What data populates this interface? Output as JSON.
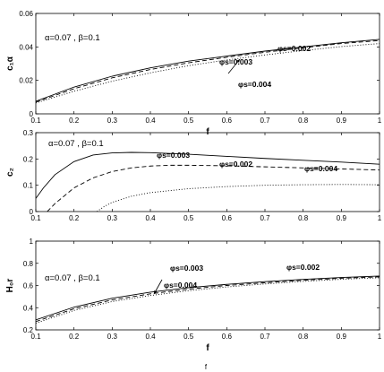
{
  "chart_data": [
    {
      "type": "line",
      "xlabel": "f",
      "ylabel": "c₁α",
      "xlim": [
        0.1,
        1
      ],
      "ylim": [
        0,
        0.06
      ],
      "xticks": [
        "0.1",
        "0.2",
        "0.3",
        "0.4",
        "0.5",
        "0.6",
        "0.7",
        "0.8",
        "0.9",
        "1"
      ],
      "yticks": [
        "0",
        "0.02",
        "0.04",
        "0.06"
      ],
      "params_label": "α=0.07 , β=0.1",
      "series_labels": [
        "φs=0.002",
        "φs=0.003",
        "φs=0.004"
      ],
      "series": [
        {
          "name": "φs=0.002",
          "style": "solid",
          "x": [
            0.1,
            0.2,
            0.3,
            0.4,
            0.5,
            0.6,
            0.7,
            0.8,
            0.9,
            1.0
          ],
          "values": [
            0.0075,
            0.016,
            0.0225,
            0.0275,
            0.0315,
            0.0345,
            0.0375,
            0.04,
            0.0425,
            0.0445
          ]
        },
        {
          "name": "φs=0.003",
          "style": "dashed",
          "x": [
            0.1,
            0.2,
            0.3,
            0.4,
            0.5,
            0.6,
            0.7,
            0.8,
            0.9,
            1.0
          ],
          "values": [
            0.007,
            0.015,
            0.0215,
            0.0265,
            0.0305,
            0.0338,
            0.0368,
            0.0395,
            0.042,
            0.0438
          ]
        },
        {
          "name": "φs=0.004",
          "style": "dotted",
          "x": [
            0.1,
            0.2,
            0.3,
            0.4,
            0.5,
            0.6,
            0.7,
            0.8,
            0.9,
            1.0
          ],
          "values": [
            0.0065,
            0.0135,
            0.0195,
            0.0245,
            0.0288,
            0.0322,
            0.0352,
            0.0378,
            0.0402,
            0.042
          ]
        }
      ]
    },
    {
      "type": "line",
      "xlabel": "",
      "ylabel": "c₂",
      "xlim": [
        0.1,
        1
      ],
      "ylim": [
        0,
        0.3
      ],
      "xticks": [
        "0.1",
        "0.2",
        "0.3",
        "0.4",
        "0.5",
        "0.6",
        "0.7",
        "0.8",
        "0.9",
        "1"
      ],
      "yticks": [
        "0",
        "0.1",
        "0.2",
        "0.3"
      ],
      "params_label": "α=0.07 , β=0.1",
      "series_labels": [
        "φs=0.002",
        "φs=0.003",
        "φs=0.004"
      ],
      "series": [
        {
          "name": "φs=0.002",
          "style": "solid",
          "x": [
            0.1,
            0.12,
            0.15,
            0.2,
            0.25,
            0.3,
            0.35,
            0.4,
            0.5,
            0.6,
            0.7,
            0.8,
            0.9,
            1.0
          ],
          "values": [
            0.05,
            0.09,
            0.14,
            0.19,
            0.215,
            0.223,
            0.225,
            0.224,
            0.218,
            0.21,
            0.202,
            0.195,
            0.188,
            0.18
          ]
        },
        {
          "name": "φs=0.003",
          "style": "dashed",
          "x": [
            0.13,
            0.15,
            0.2,
            0.25,
            0.3,
            0.35,
            0.4,
            0.45,
            0.5,
            0.6,
            0.7,
            0.8,
            0.9,
            1.0
          ],
          "values": [
            0.0,
            0.03,
            0.09,
            0.128,
            0.152,
            0.166,
            0.173,
            0.176,
            0.176,
            0.174,
            0.17,
            0.166,
            0.162,
            0.158
          ]
        },
        {
          "name": "φs=0.004",
          "style": "dotted",
          "x": [
            0.26,
            0.28,
            0.3,
            0.35,
            0.4,
            0.5,
            0.6,
            0.7,
            0.8,
            0.9,
            1.0
          ],
          "values": [
            0.0,
            0.02,
            0.035,
            0.058,
            0.072,
            0.087,
            0.095,
            0.1,
            0.102,
            0.103,
            0.102
          ]
        }
      ]
    },
    {
      "type": "line",
      "xlabel": "f",
      "ylabel": "H₀r",
      "xlim": [
        0.1,
        1
      ],
      "ylim": [
        0.2,
        1
      ],
      "xticks": [
        "0.1",
        "0.2",
        "0.3",
        "0.4",
        "0.5",
        "0.6",
        "0.7",
        "0.8",
        "0.9",
        "1"
      ],
      "yticks": [
        "0.2",
        "0.4",
        "0.6",
        "0.8",
        "1"
      ],
      "params_label": "α=0.07 , β=0.1",
      "series_labels": [
        "φs=0.003",
        "φs=0.002",
        "φs=0.004"
      ],
      "series": [
        {
          "name": "φs=0.002",
          "style": "solid",
          "x": [
            0.1,
            0.2,
            0.3,
            0.4,
            0.5,
            0.6,
            0.7,
            0.8,
            0.9,
            1.0
          ],
          "values": [
            0.29,
            0.405,
            0.485,
            0.54,
            0.58,
            0.61,
            0.635,
            0.655,
            0.672,
            0.685
          ]
        },
        {
          "name": "φs=0.003",
          "style": "dashed",
          "x": [
            0.1,
            0.2,
            0.3,
            0.4,
            0.5,
            0.6,
            0.7,
            0.8,
            0.9,
            1.0
          ],
          "values": [
            0.275,
            0.39,
            0.47,
            0.525,
            0.567,
            0.6,
            0.625,
            0.647,
            0.665,
            0.678
          ]
        },
        {
          "name": "φs=0.004",
          "style": "dotted",
          "x": [
            0.1,
            0.2,
            0.3,
            0.4,
            0.5,
            0.6,
            0.7,
            0.8,
            0.9,
            1.0
          ],
          "values": [
            0.26,
            0.375,
            0.455,
            0.51,
            0.553,
            0.587,
            0.614,
            0.637,
            0.656,
            0.67
          ]
        }
      ]
    }
  ],
  "footer_text": "f"
}
